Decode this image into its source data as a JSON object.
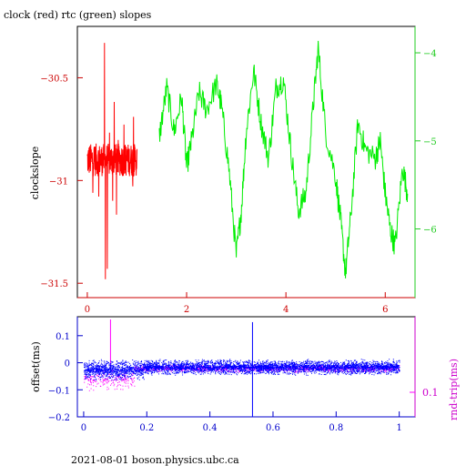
{
  "title": "clock (red) rtc (green) slopes",
  "footer": "2021-08-01 boson.physics.ubc.ca",
  "colors": {
    "clock": "#ff0000",
    "rtc": "#00ee00",
    "offset": "#0000ff",
    "rnd_trip": "#ff00ff",
    "axis_top": "#cc0000",
    "axis_right": "#22cc22",
    "axis_bottom": "#0000cc"
  },
  "chart_data": [
    {
      "type": "line",
      "title": "clock (red) rtc (green) slopes",
      "xlabel": "",
      "ylabel": "clockslope",
      "xlim": [
        -0.2,
        6.6
      ],
      "ylim": [
        -31.57,
        -30.25
      ],
      "xticks": [
        0,
        2,
        4,
        6
      ],
      "yticks": [
        -30.5,
        -31,
        -31.5
      ],
      "y2lim": [
        -6.78,
        -3.7
      ],
      "y2ticks": [
        -4,
        -5,
        -6
      ],
      "series": [
        {
          "name": "clock",
          "axis": "left",
          "style": "noisy",
          "x_start": 0.0,
          "x_end": 1.0,
          "points": [
            [
              0.0,
              -30.9
            ],
            [
              0.25,
              -30.9
            ],
            [
              0.5,
              -30.9
            ],
            [
              0.75,
              -30.9
            ],
            [
              1.0,
              -30.9
            ]
          ]
        },
        {
          "name": "rtc",
          "axis": "right",
          "style": "line",
          "points": [
            [
              1.45,
              -4.95
            ],
            [
              1.6,
              -4.4
            ],
            [
              1.75,
              -4.9
            ],
            [
              1.9,
              -4.5
            ],
            [
              2.0,
              -5.3
            ],
            [
              2.1,
              -5.0
            ],
            [
              2.25,
              -4.45
            ],
            [
              2.4,
              -4.65
            ],
            [
              2.6,
              -4.35
            ],
            [
              2.7,
              -4.6
            ],
            [
              2.85,
              -5.3
            ],
            [
              3.0,
              -6.3
            ],
            [
              3.1,
              -5.8
            ],
            [
              3.2,
              -4.9
            ],
            [
              3.35,
              -4.2
            ],
            [
              3.5,
              -4.8
            ],
            [
              3.65,
              -5.2
            ],
            [
              3.8,
              -4.4
            ],
            [
              3.95,
              -4.3
            ],
            [
              4.1,
              -5.1
            ],
            [
              4.25,
              -5.8
            ],
            [
              4.4,
              -5.6
            ],
            [
              4.55,
              -4.6
            ],
            [
              4.65,
              -3.95
            ],
            [
              4.8,
              -4.9
            ],
            [
              5.0,
              -5.4
            ],
            [
              5.1,
              -5.9
            ],
            [
              5.2,
              -6.5
            ],
            [
              5.3,
              -5.9
            ],
            [
              5.45,
              -4.8
            ],
            [
              5.6,
              -5.1
            ],
            [
              5.8,
              -5.2
            ],
            [
              5.9,
              -5.0
            ],
            [
              6.0,
              -5.6
            ],
            [
              6.1,
              -6.0
            ],
            [
              6.2,
              -6.2
            ],
            [
              6.35,
              -5.3
            ],
            [
              6.45,
              -5.6
            ]
          ]
        }
      ]
    },
    {
      "type": "scatter",
      "xlabel": "",
      "ylabel": "offset(ms)",
      "y2label": "rnd-trip(ms)",
      "xlim": [
        -0.02,
        1.05
      ],
      "ylim": [
        -0.2,
        0.17
      ],
      "xticks": [
        0,
        0.2,
        0.4,
        0.6,
        0.8,
        1
      ],
      "yticks": [
        0.1,
        0,
        -0.1,
        -0.2
      ],
      "y2ticks": [
        0.1
      ],
      "series": [
        {
          "name": "offset",
          "segments": [
            {
              "x_start": 0.0,
              "x_end": 0.19,
              "y": -0.025,
              "spread": 0.04
            },
            {
              "x_start": 0.19,
              "x_end": 1.0,
              "y": -0.015,
              "spread": 0.03
            }
          ],
          "spike": {
            "x": 0.535,
            "y_min": -0.2,
            "y_max": 0.15
          }
        },
        {
          "name": "rnd-trip",
          "segments": [
            {
              "x_start": 0.0,
              "x_end": 0.16,
              "y": -0.06,
              "spread": 0.045
            },
            {
              "x_start": 0.16,
              "x_end": 1.0,
              "y": -0.02,
              "spread": 0.015
            }
          ],
          "spike": {
            "x": 0.085,
            "y_min": -0.02,
            "y_max": 0.16
          }
        }
      ]
    }
  ]
}
